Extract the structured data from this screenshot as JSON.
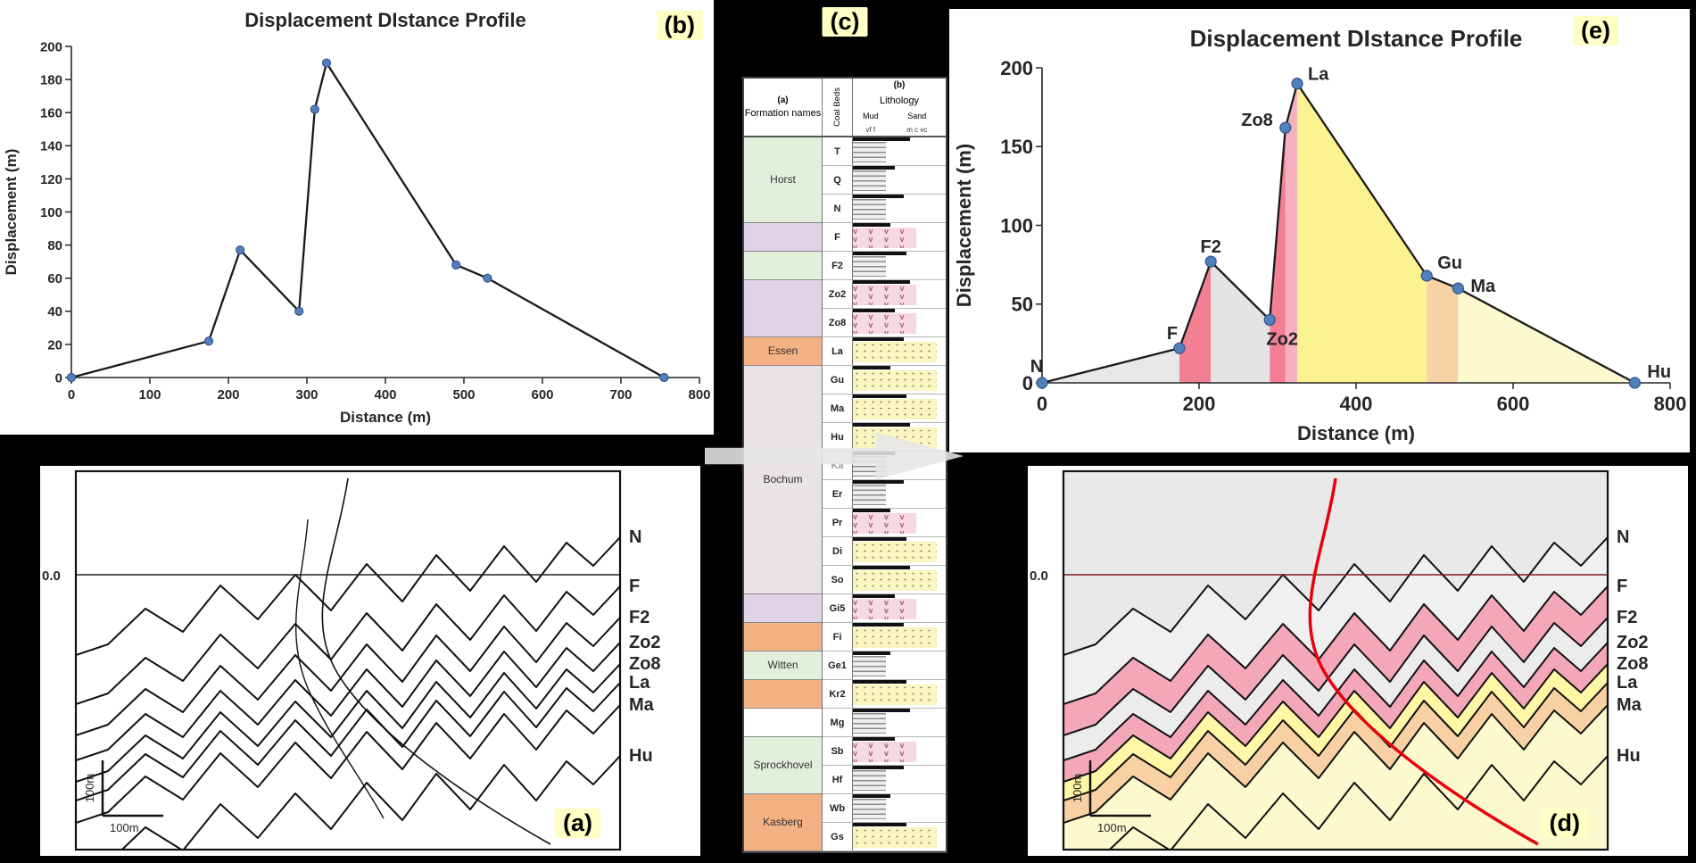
{
  "panels": {
    "a": {
      "badge": "(a)"
    },
    "b": {
      "badge": "(b)"
    },
    "c": {
      "badge": "(c)"
    },
    "d": {
      "badge": "(d)"
    },
    "e": {
      "badge": "(e)"
    }
  },
  "chart_data": [
    {
      "id": "chart-b",
      "type": "line",
      "title": "Displacement DIstance Profile",
      "xlabel": "Distance (m)",
      "ylabel": "Displacement (m)",
      "xlim": [
        0,
        800
      ],
      "ylim": [
        0,
        200
      ],
      "x_ticks": [
        0,
        100,
        200,
        300,
        400,
        500,
        600,
        700,
        800
      ],
      "y_ticks": [
        0,
        20,
        40,
        60,
        80,
        100,
        120,
        140,
        160,
        180,
        200
      ],
      "x": [
        0,
        175,
        215,
        290,
        310,
        325,
        490,
        530,
        755
      ],
      "y": [
        0,
        22,
        77,
        40,
        162,
        190,
        68,
        60,
        0
      ],
      "grid": false,
      "legend": false,
      "line_color": "#1a1a1a",
      "marker_color": "#4f81bd"
    },
    {
      "id": "chart-e",
      "type": "line",
      "title": "Displacement DIstance Profile",
      "xlabel": "Distance (m)",
      "ylabel": "Displacement (m)",
      "xlim": [
        0,
        800
      ],
      "ylim": [
        0,
        200
      ],
      "x_ticks": [
        0,
        200,
        400,
        600,
        800
      ],
      "y_ticks": [
        0,
        50,
        100,
        150,
        200
      ],
      "x": [
        0,
        175,
        215,
        290,
        310,
        325,
        490,
        530,
        755
      ],
      "y": [
        0,
        22,
        77,
        40,
        162,
        190,
        68,
        60,
        0
      ],
      "point_labels": [
        "N",
        "F",
        "F2",
        "Zo2",
        "Zo8",
        "La",
        "Gu",
        "Ma",
        "Hu"
      ],
      "label_offsets": [
        [
          -6,
          -12,
          "middle"
        ],
        [
          -8,
          -10,
          "middle"
        ],
        [
          0,
          -10,
          "middle"
        ],
        [
          14,
          28,
          "middle"
        ],
        [
          -14,
          -2,
          "end"
        ],
        [
          12,
          -4,
          "start"
        ],
        [
          12,
          -8,
          "start"
        ],
        [
          14,
          4,
          "start"
        ],
        [
          14,
          -6,
          "start"
        ]
      ],
      "segment_fills": [
        "#e8e8e8",
        "#f37f93",
        "#e4e4e4",
        "#f37f93",
        "#f6b0c0",
        "#fbf292",
        "#f7d2a4",
        "#fdf9cf"
      ],
      "grid": false,
      "legend": false,
      "line_color": "#1a1a1a",
      "marker_color": "#4f81bd"
    }
  ],
  "strat_column": {
    "header_col_a": "(a)",
    "header_col_b": "(b)",
    "formation_title": "Formation names",
    "coal_title": "Coal Beds",
    "lithology_title": "Lithology",
    "grain_mud": "Mud",
    "grain_fine": "vf f",
    "grain_sand": "Sand",
    "grain_coarse": "m c vc",
    "volcanic_symbol": "v",
    "beds": [
      {
        "name": "T",
        "lith": "mud"
      },
      {
        "name": "Q",
        "lith": "mud"
      },
      {
        "name": "N",
        "lith": "mud"
      },
      {
        "name": "F",
        "lith": "volcanic"
      },
      {
        "name": "F2",
        "lith": "mud"
      },
      {
        "name": "Zo2",
        "lith": "volcanic"
      },
      {
        "name": "Zo8",
        "lith": "volcanic"
      },
      {
        "name": "La",
        "lith": "sand"
      },
      {
        "name": "Gu",
        "lith": "sand"
      },
      {
        "name": "Ma",
        "lith": "sand"
      },
      {
        "name": "Hu",
        "lith": "sand"
      },
      {
        "name": "Ka",
        "lith": "mud",
        "faded": true
      },
      {
        "name": "Er",
        "lith": "mud"
      },
      {
        "name": "Pr",
        "lith": "volcanic"
      },
      {
        "name": "Di",
        "lith": "sand"
      },
      {
        "name": "So",
        "lith": "sand"
      },
      {
        "name": "Gi5",
        "lith": "volcanic"
      },
      {
        "name": "Fi",
        "lith": "sand"
      },
      {
        "name": "Ge1",
        "lith": "mud"
      },
      {
        "name": "Kr2",
        "lith": "sand"
      },
      {
        "name": "Mg",
        "lith": "mud"
      },
      {
        "name": "Sb",
        "lith": "volcanic"
      },
      {
        "name": "Hf",
        "lith": "mud"
      },
      {
        "name": "Wb",
        "lith": "mud"
      },
      {
        "name": "Gs",
        "lith": "sand"
      }
    ],
    "formations": [
      {
        "name": "Horst",
        "color": "#e2efda",
        "start": 0,
        "count": 3
      },
      {
        "name": "",
        "color": "#e0d3e8",
        "start": 3,
        "count": 1
      },
      {
        "name": "",
        "color": "#e2efda",
        "start": 4,
        "count": 1
      },
      {
        "name": "",
        "color": "#e0d3e8",
        "start": 5,
        "count": 2
      },
      {
        "name": "Essen",
        "color": "#f4b183",
        "start": 7,
        "count": 1
      },
      {
        "name": "Bochum",
        "color": "#e9e2e6",
        "start": 8,
        "count": 8
      },
      {
        "name": "",
        "color": "#e0d3e8",
        "start": 16,
        "count": 1
      },
      {
        "name": "",
        "color": "#f4b183",
        "start": 17,
        "count": 1
      },
      {
        "name": "Witten",
        "color": "#e2efda",
        "start": 18,
        "count": 1
      },
      {
        "name": "",
        "color": "#f4b183",
        "start": 19,
        "count": 1
      },
      {
        "name": "",
        "color": "#ffffff",
        "start": 20,
        "count": 1
      },
      {
        "name": "Sprockhovel",
        "color": "#e2efda",
        "start": 21,
        "count": 2
      },
      {
        "name": "Kasberg",
        "color": "#f4b183",
        "start": 23,
        "count": 2
      }
    ]
  },
  "cross_sections": {
    "a": {
      "id": "section-a",
      "style": "outline",
      "datum_label": "0.0",
      "scale_vertical": "100m",
      "scale_horizontal": "100m",
      "horizon_labels": [
        "N",
        "F",
        "F2",
        "Zo2",
        "Zo8",
        "La",
        "Ma",
        "Hu"
      ]
    },
    "d": {
      "id": "section-d",
      "style": "colored",
      "datum_label": "0.0",
      "scale_vertical": "100m",
      "scale_horizontal": "100m",
      "horizon_labels": [
        "N",
        "F",
        "F2",
        "Zo2",
        "Zo8",
        "La",
        "Ma",
        "Hu"
      ],
      "top_color": "#e9e9e9",
      "bottom_color": "#fcf9cf",
      "band_colors": [
        "#f0f0f0",
        "#f4a7b9",
        "#ececec",
        "#f4a7b9",
        "#fdf7a6",
        "#f7d1a4",
        "#fcf9cf"
      ],
      "fault_color": "#e8000b",
      "datum_color": "#7b1f1f"
    }
  }
}
